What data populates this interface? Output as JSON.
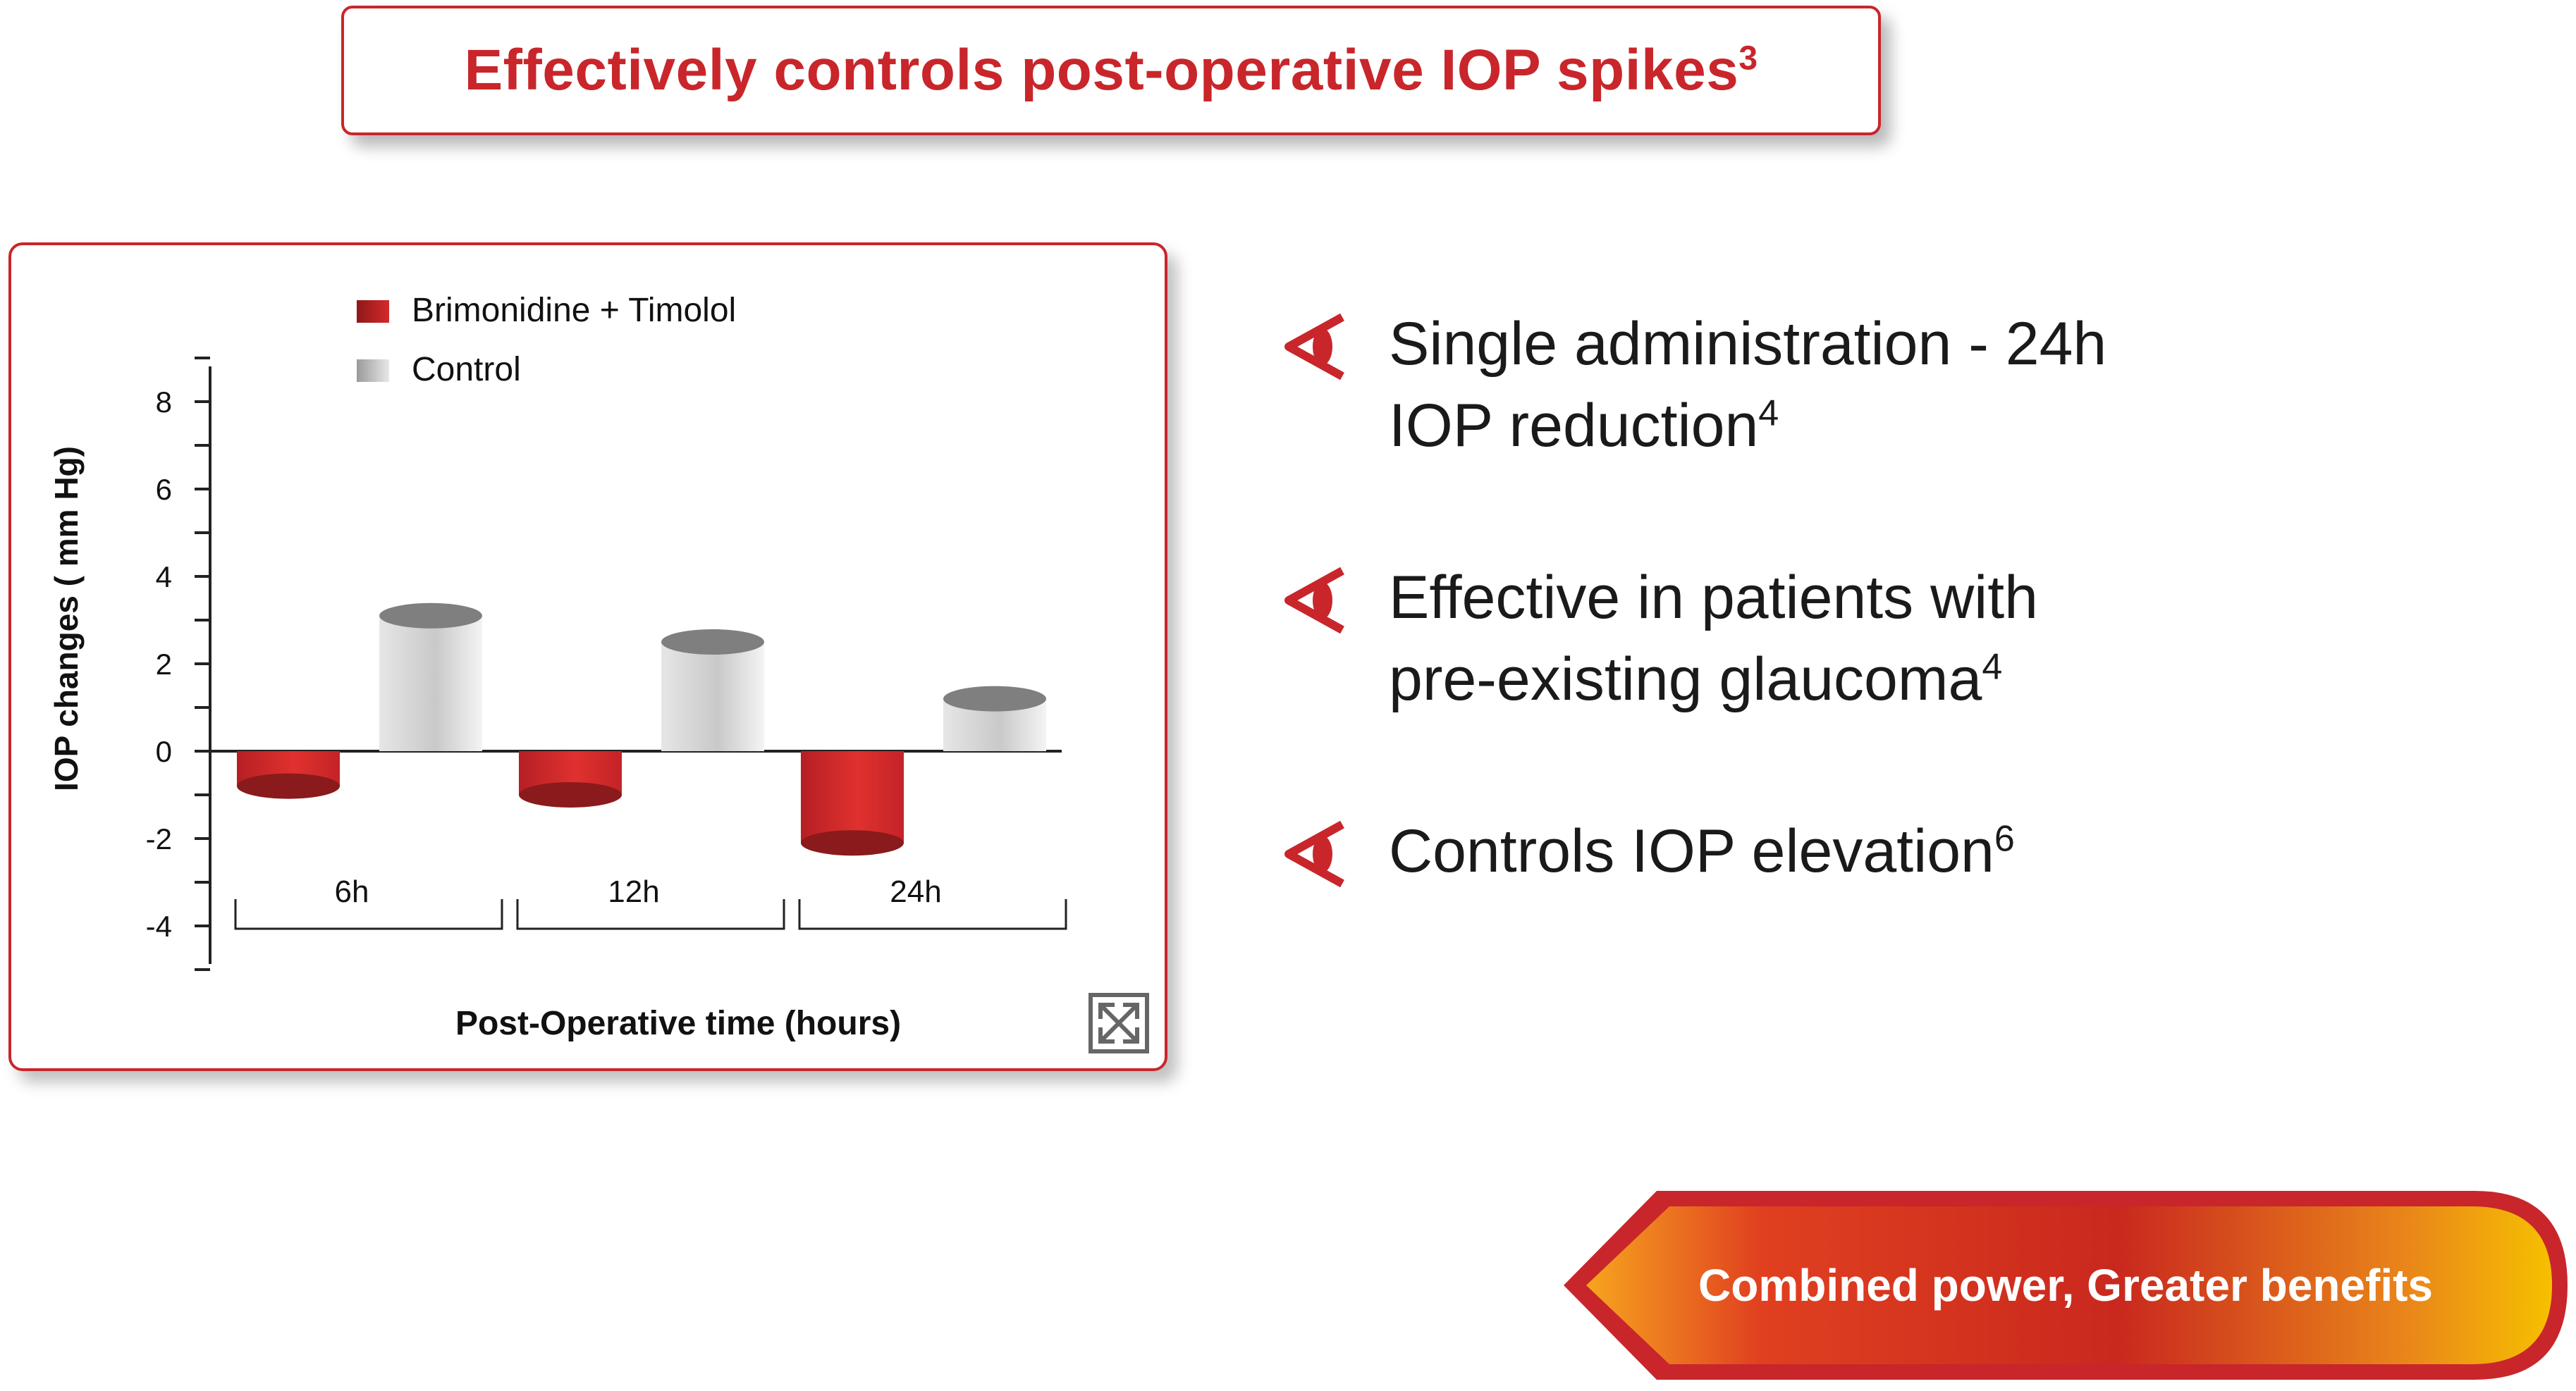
{
  "header": {
    "title": "Effectively controls post-operative IOP spikes",
    "title_superscript": "3"
  },
  "colors": {
    "accent": "#c8262b",
    "brimonidine_timolol": "#d42a2a",
    "control": "#c8c8c8",
    "banner_gradient_start": "#f7a51f",
    "banner_gradient_end": "#f6c000"
  },
  "chart_data": {
    "type": "bar",
    "categories": [
      "6h",
      "12h",
      "24h"
    ],
    "series": [
      {
        "name": "Brimonidine + Timolol",
        "values": [
          -0.8,
          -1.0,
          -2.1
        ]
      },
      {
        "name": "Control",
        "values": [
          3.1,
          2.5,
          1.2
        ]
      }
    ],
    "xlabel": "Post-Operative time (hours)",
    "ylabel": "IOP changes ( mm Hg)",
    "yticks": [
      8,
      6,
      4,
      2,
      0,
      -2,
      -4
    ],
    "ylim": [
      -5,
      9
    ],
    "legend_position": "top",
    "grid": false,
    "style": "3d-cylinder"
  },
  "expand_icon": "expand-icon",
  "benefits": [
    {
      "icon": "eye-icon",
      "lines": [
        "Single administration - 24h",
        "IOP reduction"
      ],
      "superscript": "4"
    },
    {
      "icon": "eye-icon",
      "lines": [
        "Effective in patients with",
        "pre-existing glaucoma"
      ],
      "superscript": "4"
    },
    {
      "icon": "eye-icon",
      "lines": [
        "Controls IOP elevation"
      ],
      "superscript": "6"
    }
  ],
  "banner": {
    "label": "Combined power, Greater benefits"
  }
}
